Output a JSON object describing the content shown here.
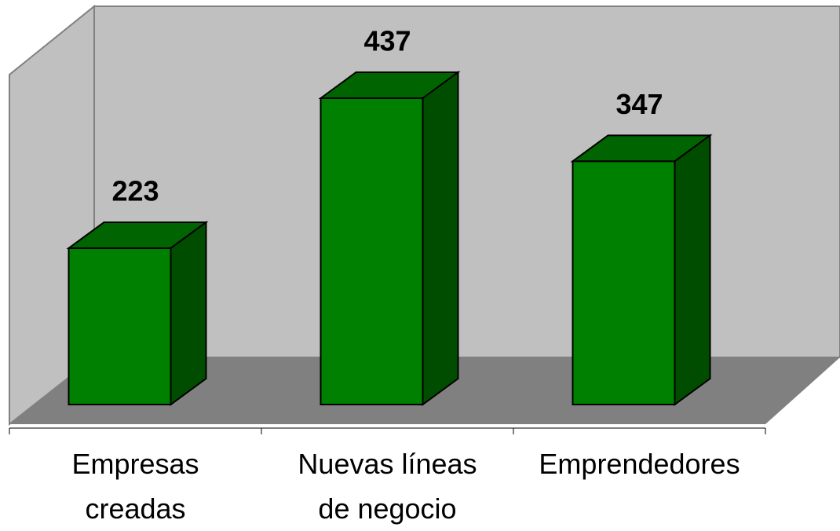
{
  "chart_data": {
    "type": "bar3d",
    "categories": [
      "Empresas creadas",
      "Nuevas líneas de negocio",
      "Emprendedores"
    ],
    "values": [
      223,
      437,
      347
    ],
    "color": "#008000"
  }
}
